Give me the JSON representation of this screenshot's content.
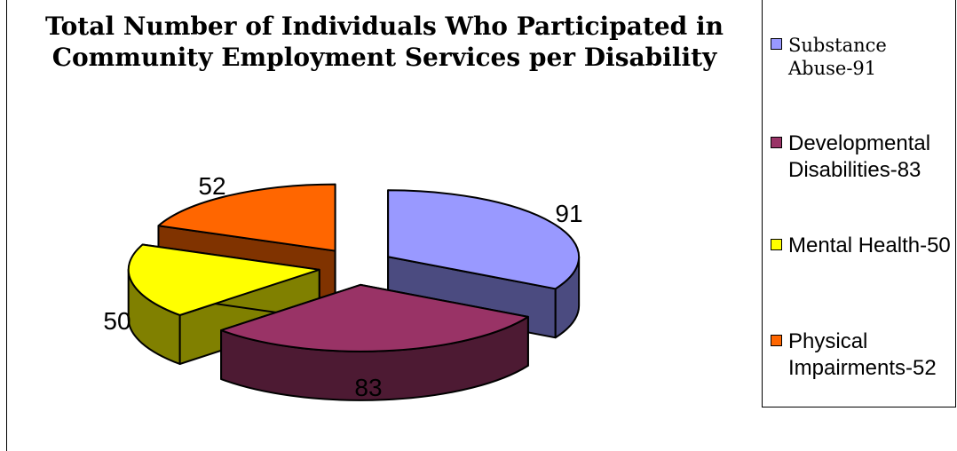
{
  "chart_data": {
    "type": "pie",
    "title_line1": "Total Number of Individuals Who Participated in",
    "title_line2": "Community Employment Services per Disability",
    "slices": [
      {
        "name": "Substance Abuse",
        "value": 91,
        "legend_label": "Substance Abuse-91",
        "data_label": "91",
        "color": "#9999ff",
        "side_color": "#4b4b80"
      },
      {
        "name": "Developmental Disabilities",
        "value": 83,
        "legend_label": "Developmental Disabilities-83",
        "data_label": "83",
        "color": "#993366",
        "side_color": "#4d1a33"
      },
      {
        "name": "Mental Health",
        "value": 50,
        "legend_label": "Mental Health-50",
        "data_label": "50",
        "color": "#ffff00",
        "side_color": "#808000"
      },
      {
        "name": "Physical Impairments",
        "value": 52,
        "legend_label": "Physical Impairments-52",
        "data_label": "52",
        "color": "#ff6600",
        "side_color": "#803300"
      }
    ],
    "legend_position": "right",
    "exploded": true,
    "three_d": true
  }
}
